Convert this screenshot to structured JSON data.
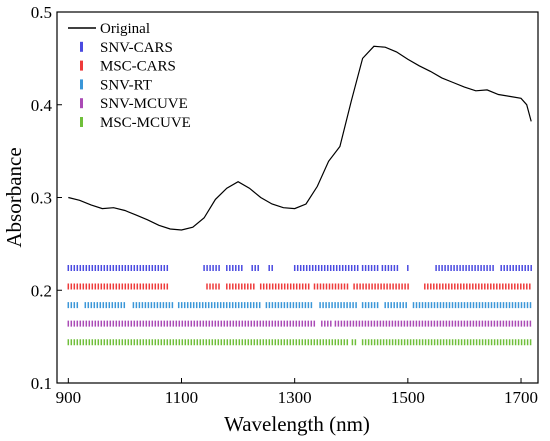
{
  "chart_data": {
    "type": "line",
    "xlabel": "Wavelength (nm)",
    "ylabel": "Absorbance",
    "xlim": [
      880,
      1730
    ],
    "ylim": [
      0.1,
      0.5
    ],
    "xticks": [
      900,
      1100,
      1300,
      1500,
      1700
    ],
    "yticks": [
      0.1,
      0.2,
      0.3,
      0.4,
      0.5
    ],
    "tick_labels_x": [
      "900",
      "1100",
      "1300",
      "1500",
      "1700"
    ],
    "tick_labels_y": [
      "0.1",
      "0.2",
      "0.3",
      "0.4",
      "0.5"
    ],
    "grid": false,
    "legend_position": "top-left",
    "series": [
      {
        "name": "Original",
        "color": "#000000",
        "x": [
          900,
          920,
          940,
          960,
          980,
          1000,
          1020,
          1040,
          1060,
          1080,
          1100,
          1120,
          1140,
          1160,
          1180,
          1200,
          1220,
          1240,
          1260,
          1280,
          1300,
          1320,
          1340,
          1360,
          1380,
          1400,
          1420,
          1440,
          1460,
          1480,
          1500,
          1520,
          1540,
          1560,
          1580,
          1600,
          1620,
          1640,
          1660,
          1680,
          1700,
          1710,
          1718
        ],
        "values": [
          0.3,
          0.297,
          0.292,
          0.288,
          0.289,
          0.286,
          0.281,
          0.276,
          0.27,
          0.266,
          0.265,
          0.268,
          0.278,
          0.298,
          0.31,
          0.317,
          0.31,
          0.3,
          0.293,
          0.289,
          0.288,
          0.293,
          0.312,
          0.339,
          0.355,
          0.404,
          0.45,
          0.463,
          0.462,
          0.457,
          0.449,
          0.442,
          0.436,
          0.429,
          0.424,
          0.419,
          0.415,
          0.416,
          0.411,
          0.409,
          0.407,
          0.4,
          0.382
        ]
      },
      {
        "name": "SNV-CARS",
        "color": "#4a4ae0",
        "level": 0.224,
        "ranges": [
          [
            900,
            1075
          ],
          [
            1140,
            1170
          ],
          [
            1180,
            1210
          ],
          [
            1225,
            1240
          ],
          [
            1255,
            1265
          ],
          [
            1300,
            1415
          ],
          [
            1420,
            1450
          ],
          [
            1455,
            1485
          ],
          [
            1500,
            1505
          ],
          [
            1550,
            1655
          ],
          [
            1665,
            1720
          ]
        ]
      },
      {
        "name": "MSC-CARS",
        "color": "#ee3a3a",
        "level": 0.204,
        "ranges": [
          [
            900,
            1075
          ],
          [
            1145,
            1170
          ],
          [
            1180,
            1232
          ],
          [
            1240,
            1330
          ],
          [
            1335,
            1395
          ],
          [
            1405,
            1505
          ],
          [
            1530,
            1720
          ]
        ]
      },
      {
        "name": "SNV-RT",
        "color": "#3a96d8",
        "level": 0.184,
        "ranges": [
          [
            900,
            920
          ],
          [
            930,
            1000
          ],
          [
            1015,
            1085
          ],
          [
            1095,
            1240
          ],
          [
            1250,
            1330
          ],
          [
            1345,
            1410
          ],
          [
            1420,
            1450
          ],
          [
            1460,
            1500
          ],
          [
            1510,
            1720
          ]
        ]
      },
      {
        "name": "SNV-MCUVE",
        "color": "#aa4ab5",
        "level": 0.164,
        "ranges": [
          [
            900,
            1340
          ],
          [
            1348,
            1365
          ],
          [
            1372,
            1720
          ]
        ]
      },
      {
        "name": "MSC-MCUVE",
        "color": "#6fbf3a",
        "level": 0.144,
        "ranges": [
          [
            900,
            1395
          ],
          [
            1402,
            1410
          ],
          [
            1420,
            1720
          ]
        ]
      }
    ]
  }
}
